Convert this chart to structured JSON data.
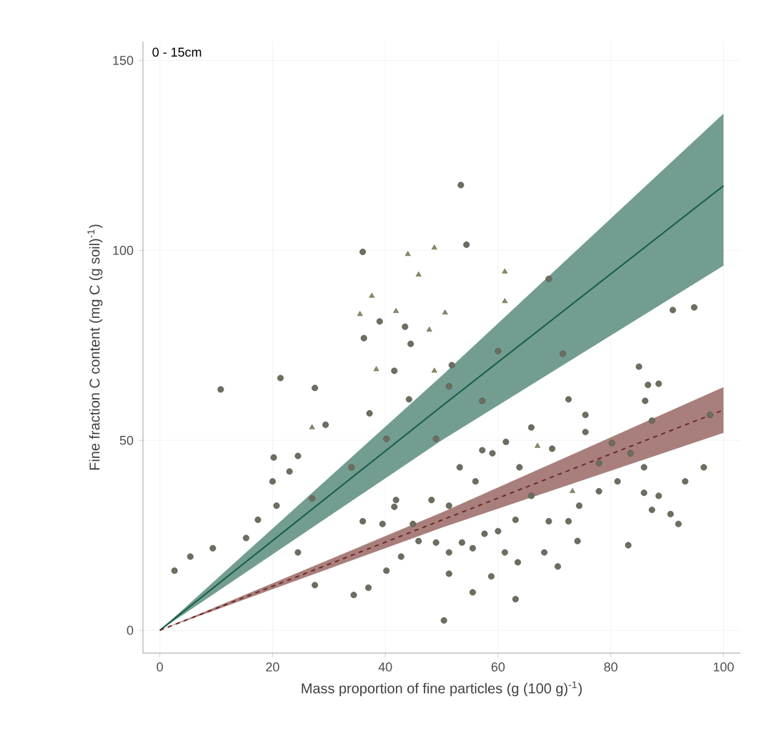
{
  "chart_data": {
    "type": "scatter",
    "xlabel": "Mass proportion of fine particles (g (100 g)$^{-1}$)",
    "ylabel": "Fine fraction C content (mg C (g soil)$^{-1}$)",
    "annotations": [
      "0 - 15cm"
    ],
    "xlim": [
      -3,
      103
    ],
    "ylim": [
      -6,
      155
    ],
    "xticks": [
      0,
      20,
      40,
      60,
      80,
      100
    ],
    "yticks": [
      0,
      50,
      100,
      150
    ],
    "grid": true,
    "series": [
      {
        "color": "#6e6e60",
        "marker": "circle",
        "x": [
          53.4,
          36,
          54.4,
          39,
          43.5,
          36.2,
          44.5,
          69,
          91,
          94.8,
          85,
          71.5,
          60,
          41.6,
          51.8,
          21.4,
          10.8,
          27.5,
          29.4,
          37.2,
          44.2,
          51.3,
          57.2,
          20.2,
          24.5,
          23,
          20,
          20.7,
          17.4,
          15.3,
          9.4,
          5.4,
          2.6,
          27,
          34,
          40.2,
          49,
          24.5,
          27.5,
          34.4,
          37,
          40.2,
          42.8,
          41.6,
          36,
          39.5,
          44.9,
          48.2,
          51.3,
          53.2,
          51.3,
          51.3,
          55.5,
          55.5,
          50.4,
          58.8,
          63.1,
          63.5,
          61.2,
          63.1,
          60,
          56,
          57.2,
          61.4,
          65.9,
          69.6,
          65.9,
          69,
          72.5,
          68.2,
          70.6,
          74.1,
          74.4,
          77.9,
          81.2,
          83.1,
          85.9,
          88.5,
          87.3,
          90.6,
          92,
          93.2,
          96.5,
          85.9,
          83.5,
          77.9,
          75.5,
          75.5,
          72.5,
          86.1,
          86.6,
          88.5,
          97.6,
          87.3,
          80.2,
          41.9,
          63.8,
          59,
          45.9,
          49,
          53.6,
          57.6
        ],
        "values": [
          117.2,
          99.6,
          101.5,
          81.3,
          79.9,
          76.9,
          75.4,
          92.5,
          84.3,
          85,
          69.4,
          72.8,
          73.5,
          68.3,
          69.8,
          66.4,
          63.4,
          63.8,
          54.1,
          57.1,
          60.8,
          64.2,
          60.4,
          45.5,
          45.9,
          41.8,
          39.2,
          32.8,
          29.1,
          24.3,
          21.6,
          19.4,
          15.7,
          34.7,
          42.9,
          50.4,
          50.4,
          20.5,
          11.9,
          9.3,
          11.2,
          15.7,
          19.4,
          32.5,
          28.7,
          28,
          28,
          34.3,
          32.8,
          42.9,
          20.5,
          14.9,
          21.6,
          10,
          2.6,
          14.2,
          8.2,
          17.9,
          20.5,
          29.1,
          26.1,
          39.2,
          47.4,
          49.6,
          53.4,
          47.8,
          35.4,
          28.7,
          28.7,
          20.5,
          16.8,
          23.5,
          32.8,
          36.6,
          39.2,
          22.4,
          36.2,
          35.4,
          31.7,
          30.6,
          28,
          39.2,
          42.9,
          42.9,
          46.6,
          44,
          52.2,
          56.7,
          60.8,
          60.4,
          64.6,
          64.9,
          56.7,
          55.2,
          49.3,
          34.3,
          42.9,
          46.6,
          23.5,
          23.1,
          23.1,
          25.4
        ]
      },
      {
        "color": "#8a8a66",
        "marker": "triangle",
        "x": [
          44,
          48.7,
          45.9,
          61.2,
          37.6,
          35.5,
          41.9,
          50.6,
          61.2,
          47.8,
          38.4,
          48.7,
          27,
          67,
          73.2
        ],
        "values": [
          99,
          100.7,
          93.6,
          94.4,
          88,
          83.2,
          84,
          83.6,
          86.6,
          79.1,
          68.7,
          68.3,
          53.4,
          48.5,
          36.6
        ]
      },
      {
        "type": "line",
        "color": "#155c48",
        "line_style": "solid",
        "marker": "none",
        "x": [
          0,
          50,
          100
        ],
        "values": [
          0,
          59,
          117
        ],
        "lower": [
          0,
          50,
          96
        ],
        "upper": [
          0,
          67,
          136
        ]
      },
      {
        "type": "line",
        "color": "#6e2a24",
        "line_style": "dashed",
        "marker": "none",
        "x": [
          0,
          50,
          100
        ],
        "values": [
          0,
          29,
          58
        ],
        "lower": [
          0,
          27,
          52
        ],
        "upper": [
          0,
          31,
          64
        ]
      }
    ]
  }
}
